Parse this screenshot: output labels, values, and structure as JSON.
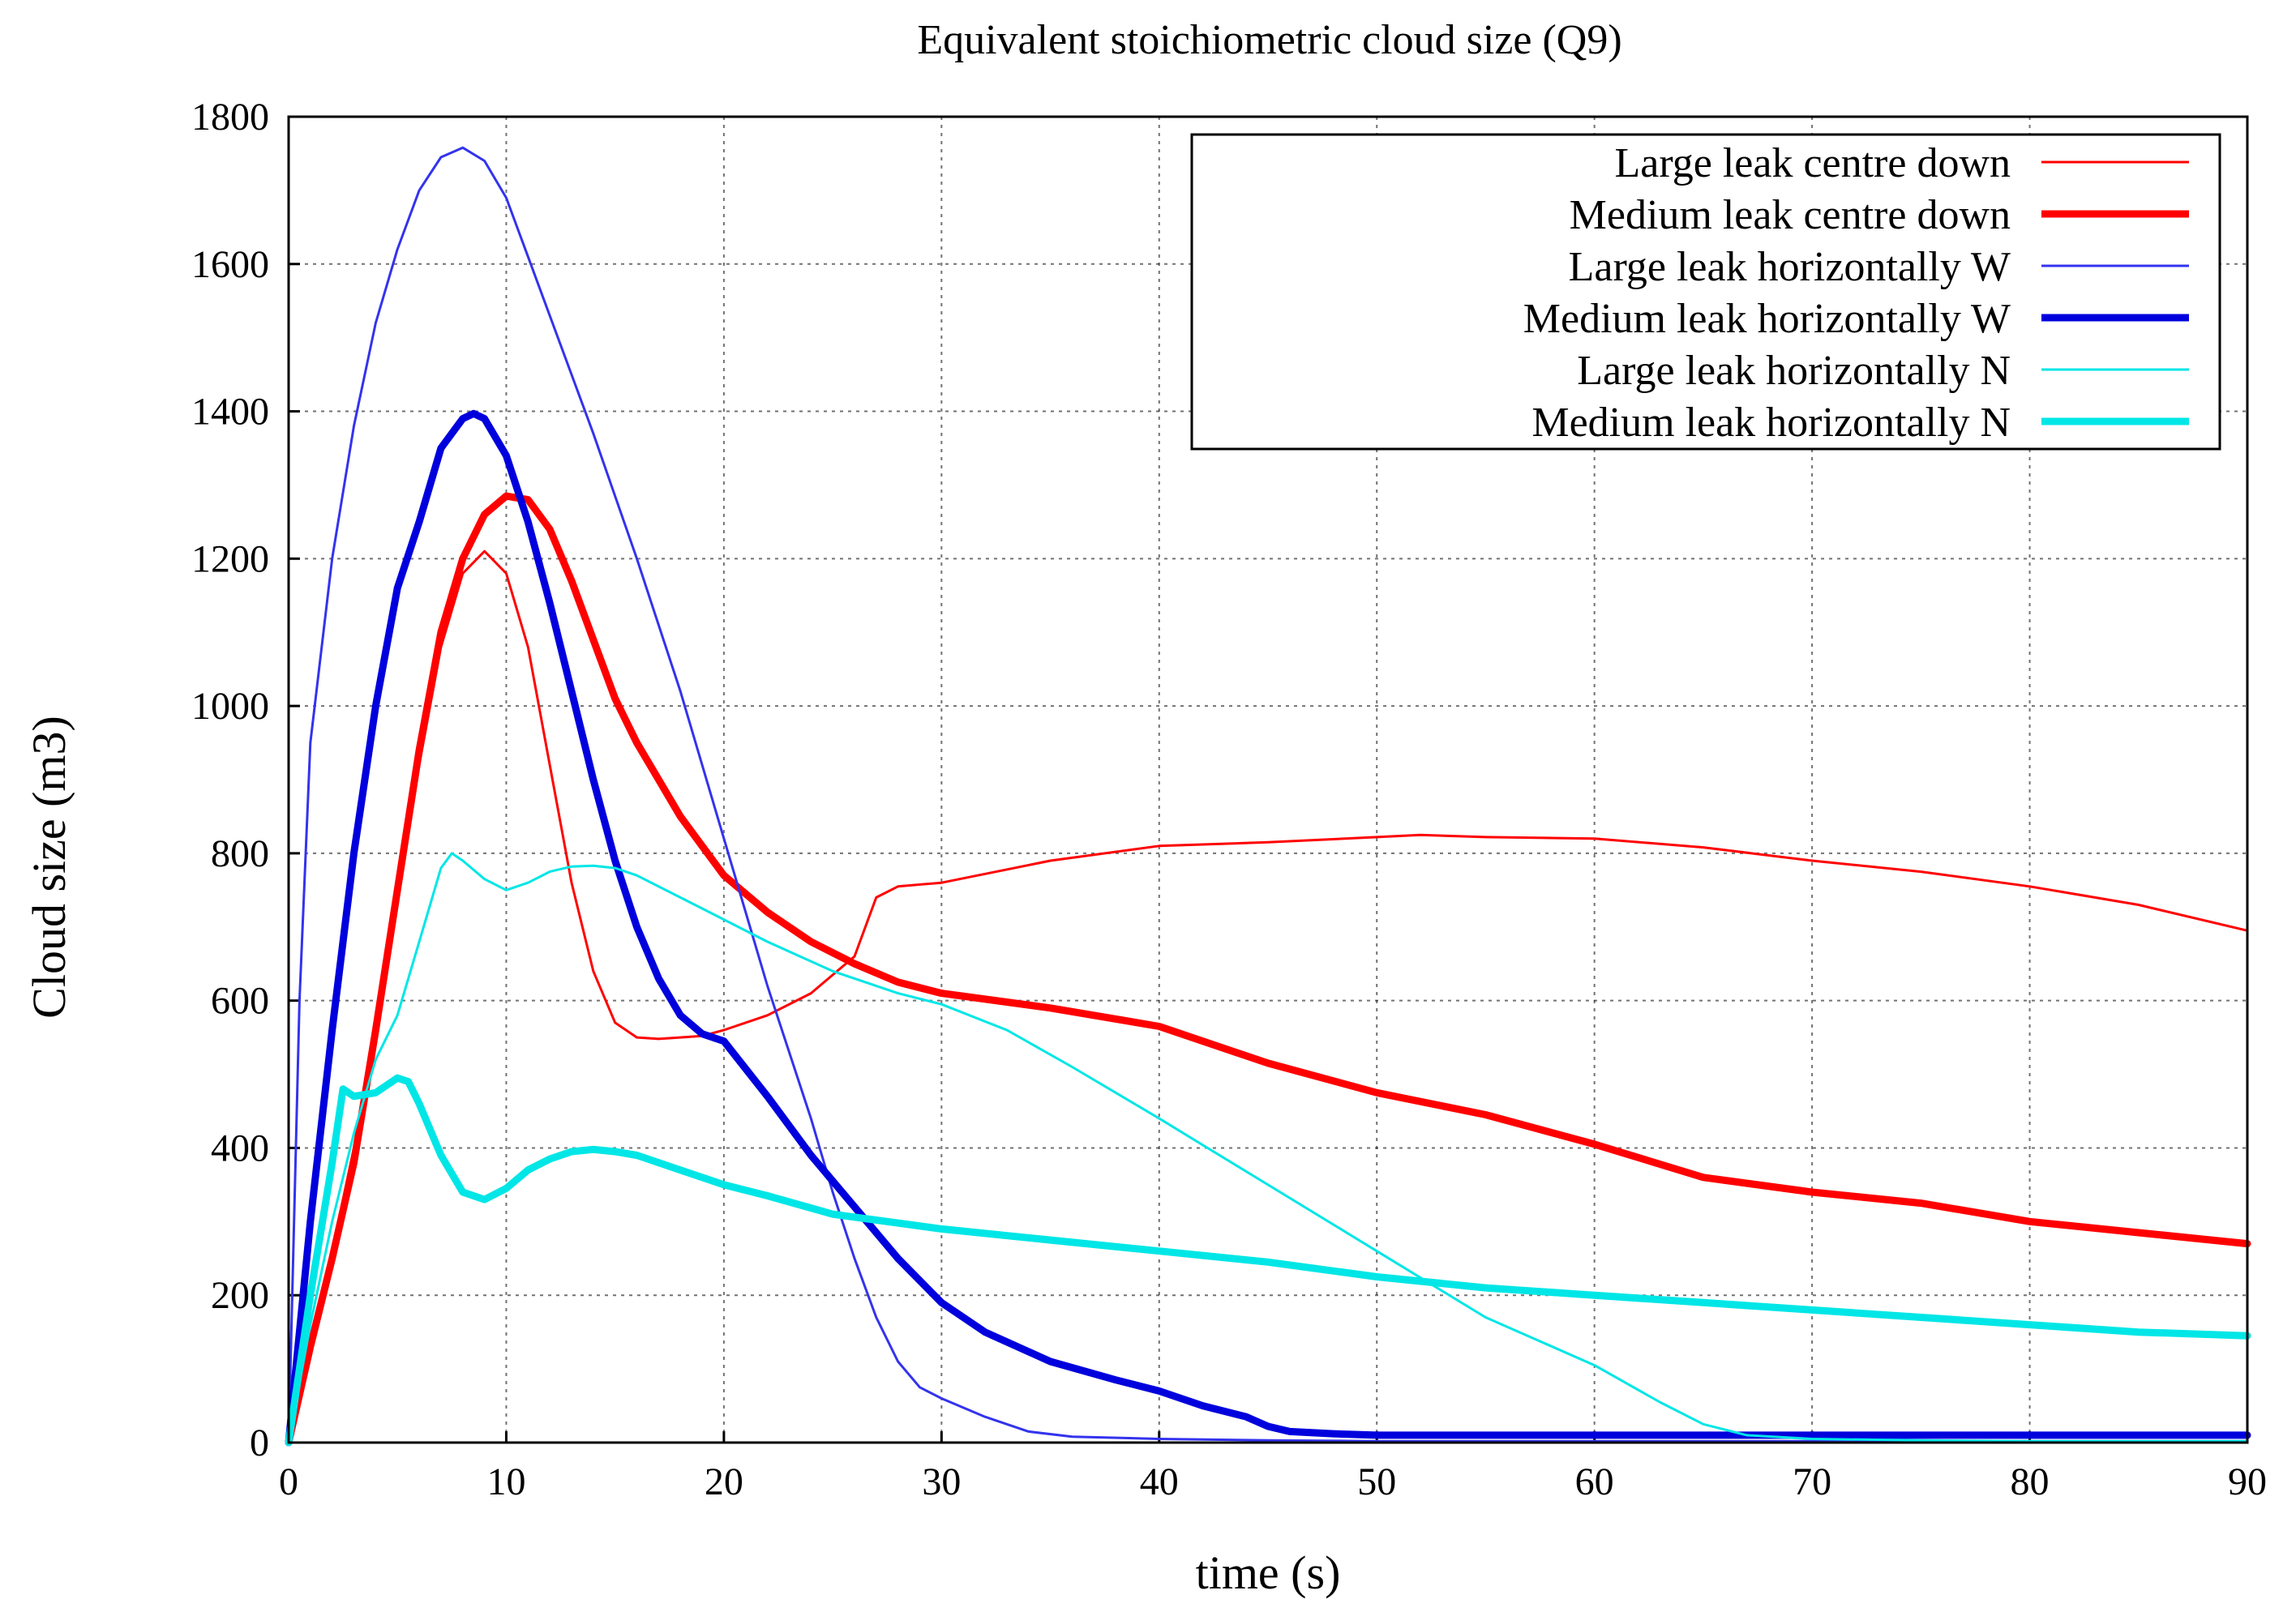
{
  "chart_data": {
    "type": "line",
    "title": "Equivalent stoichiometric cloud size (Q9)",
    "xlabel": "time (s)",
    "ylabel": "Cloud size (m3)",
    "xlim": [
      0,
      90
    ],
    "ylim": [
      0,
      1800
    ],
    "xticks": [
      0,
      10,
      20,
      30,
      40,
      50,
      60,
      70,
      80,
      90
    ],
    "yticks": [
      0,
      200,
      400,
      600,
      800,
      1000,
      1200,
      1400,
      1600,
      1800
    ],
    "grid": true,
    "legend_position": "top-right",
    "series": [
      {
        "name": "Large leak centre down",
        "color": "#ff0000",
        "weight": "thin",
        "x": [
          0,
          1,
          2,
          3,
          4,
          5,
          6,
          7,
          8,
          9,
          10,
          11,
          12,
          13,
          14,
          15,
          16,
          17,
          18,
          19,
          20,
          22,
          24,
          26,
          27,
          28,
          30,
          35,
          40,
          45,
          50,
          52,
          55,
          60,
          65,
          70,
          75,
          80,
          85,
          90
        ],
        "y": [
          0,
          120,
          260,
          400,
          560,
          740,
          920,
          1080,
          1180,
          1210,
          1180,
          1080,
          920,
          760,
          640,
          570,
          550,
          548,
          550,
          552,
          560,
          580,
          610,
          660,
          740,
          755,
          760,
          790,
          810,
          815,
          822,
          825,
          822,
          820,
          808,
          790,
          775,
          755,
          730,
          695
        ]
      },
      {
        "name": "Medium leak centre down",
        "color": "#ff0000",
        "weight": "thick",
        "x": [
          0,
          1,
          2,
          3,
          4,
          5,
          6,
          7,
          8,
          9,
          10,
          11,
          12,
          13,
          14,
          15,
          16,
          17,
          18,
          19,
          20,
          22,
          24,
          26,
          28,
          30,
          35,
          40,
          45,
          50,
          55,
          60,
          65,
          70,
          75,
          80,
          85,
          90
        ],
        "y": [
          0,
          130,
          250,
          380,
          560,
          750,
          940,
          1100,
          1200,
          1260,
          1285,
          1280,
          1240,
          1170,
          1090,
          1010,
          950,
          900,
          850,
          810,
          770,
          720,
          680,
          650,
          625,
          610,
          590,
          565,
          515,
          475,
          445,
          405,
          360,
          340,
          325,
          300,
          285,
          270
        ]
      },
      {
        "name": "Large leak horizontally W",
        "color": "#3333ee",
        "weight": "thin",
        "x": [
          0,
          0.5,
          1,
          2,
          3,
          4,
          5,
          6,
          7,
          8,
          9,
          10,
          11,
          12,
          14,
          16,
          18,
          20,
          22,
          24,
          25,
          26,
          27,
          28,
          29,
          30,
          32,
          34,
          36,
          40,
          45,
          50,
          60,
          70,
          80,
          90
        ],
        "y": [
          0,
          600,
          950,
          1200,
          1380,
          1520,
          1620,
          1700,
          1745,
          1758,
          1740,
          1690,
          1610,
          1530,
          1370,
          1200,
          1020,
          820,
          620,
          440,
          340,
          250,
          170,
          110,
          75,
          60,
          35,
          15,
          8,
          5,
          3,
          2,
          2,
          2,
          2,
          2
        ]
      },
      {
        "name": "Medium leak horizontally W",
        "color": "#0000dd",
        "weight": "thick",
        "x": [
          0,
          1,
          2,
          3,
          4,
          5,
          6,
          7,
          8,
          8.5,
          9,
          10,
          11,
          12,
          13,
          14,
          15,
          16,
          17,
          18,
          19,
          20,
          22,
          24,
          26,
          28,
          30,
          32,
          35,
          38,
          40,
          42,
          44,
          45,
          46,
          48,
          50,
          55,
          60,
          70,
          80,
          90
        ],
        "y": [
          0,
          300,
          560,
          800,
          1000,
          1160,
          1250,
          1350,
          1390,
          1397,
          1390,
          1340,
          1250,
          1140,
          1020,
          900,
          790,
          700,
          630,
          580,
          555,
          545,
          470,
          390,
          320,
          250,
          190,
          150,
          110,
          85,
          70,
          50,
          35,
          22,
          15,
          12,
          10,
          10,
          10,
          10,
          10,
          10
        ]
      },
      {
        "name": "Large leak horizontally N",
        "color": "#00e6e6",
        "weight": "thin",
        "x": [
          0,
          1,
          2,
          3,
          4,
          5,
          6,
          7,
          7.5,
          8,
          9,
          10,
          11,
          12,
          13,
          14,
          15,
          16,
          18,
          20,
          22,
          25,
          28,
          30,
          33,
          36,
          40,
          45,
          50,
          55,
          60,
          63,
          65,
          67,
          70,
          75,
          80,
          90
        ],
        "y": [
          0,
          160,
          300,
          420,
          520,
          580,
          680,
          780,
          800,
          790,
          765,
          750,
          760,
          775,
          782,
          783,
          780,
          770,
          740,
          710,
          680,
          640,
          610,
          595,
          560,
          510,
          440,
          350,
          260,
          170,
          105,
          55,
          25,
          10,
          5,
          3,
          2,
          2
        ]
      },
      {
        "name": "Medium leak horizontally N",
        "color": "#00e6e6",
        "weight": "thick",
        "x": [
          0,
          1,
          2,
          2.5,
          3,
          4,
          5,
          5.5,
          6,
          7,
          8,
          9,
          10,
          11,
          12,
          13,
          14,
          15,
          16,
          18,
          20,
          22,
          25,
          30,
          35,
          40,
          45,
          50,
          55,
          60,
          65,
          70,
          75,
          80,
          85,
          90
        ],
        "y": [
          0,
          200,
          380,
          480,
          470,
          475,
          495,
          490,
          460,
          390,
          340,
          330,
          345,
          370,
          385,
          395,
          398,
          395,
          390,
          370,
          350,
          335,
          310,
          290,
          275,
          260,
          245,
          225,
          210,
          200,
          190,
          180,
          170,
          160,
          150,
          145
        ]
      }
    ]
  }
}
